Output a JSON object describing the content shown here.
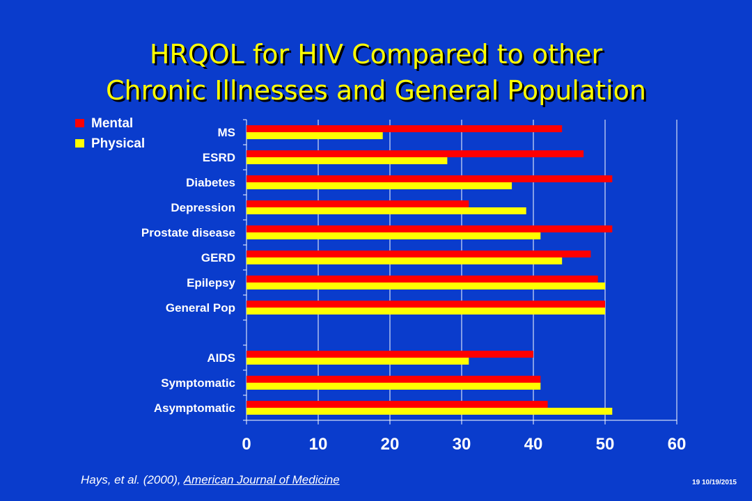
{
  "slide": {
    "title_line1": "HRQOL for HIV Compared to other",
    "title_line2": "Chronic Illnesses and General Population",
    "citation_prefix": "Hays,  et al. (2000), ",
    "citation_journal": "American Journal of Medicine",
    "slide_number": "19 10/19/2015"
  },
  "colors": {
    "background": "#0a3ccc",
    "mental": "#ff0000",
    "physical": "#ffff00",
    "title": "#ffff00",
    "text": "#ffffff"
  },
  "chart_data": {
    "type": "bar",
    "orientation": "horizontal",
    "categories": [
      "MS",
      "ESRD",
      "Diabetes",
      "Depression",
      "Prostate disease",
      "GERD",
      "Epilepsy",
      "General Pop",
      "",
      "AIDS",
      "Symptomatic",
      "Asymptomatic"
    ],
    "series": [
      {
        "name": "Mental",
        "values": [
          44,
          47,
          51,
          31,
          51,
          48,
          49,
          50,
          null,
          40,
          41,
          42
        ]
      },
      {
        "name": "Physical",
        "values": [
          19,
          28,
          37,
          39,
          41,
          44,
          50,
          50,
          null,
          31,
          41,
          51
        ]
      }
    ],
    "x_ticks": [
      0,
      10,
      20,
      30,
      40,
      50,
      60
    ],
    "xlim": [
      0,
      60
    ],
    "grid": "vertical",
    "legend": "top-left"
  }
}
